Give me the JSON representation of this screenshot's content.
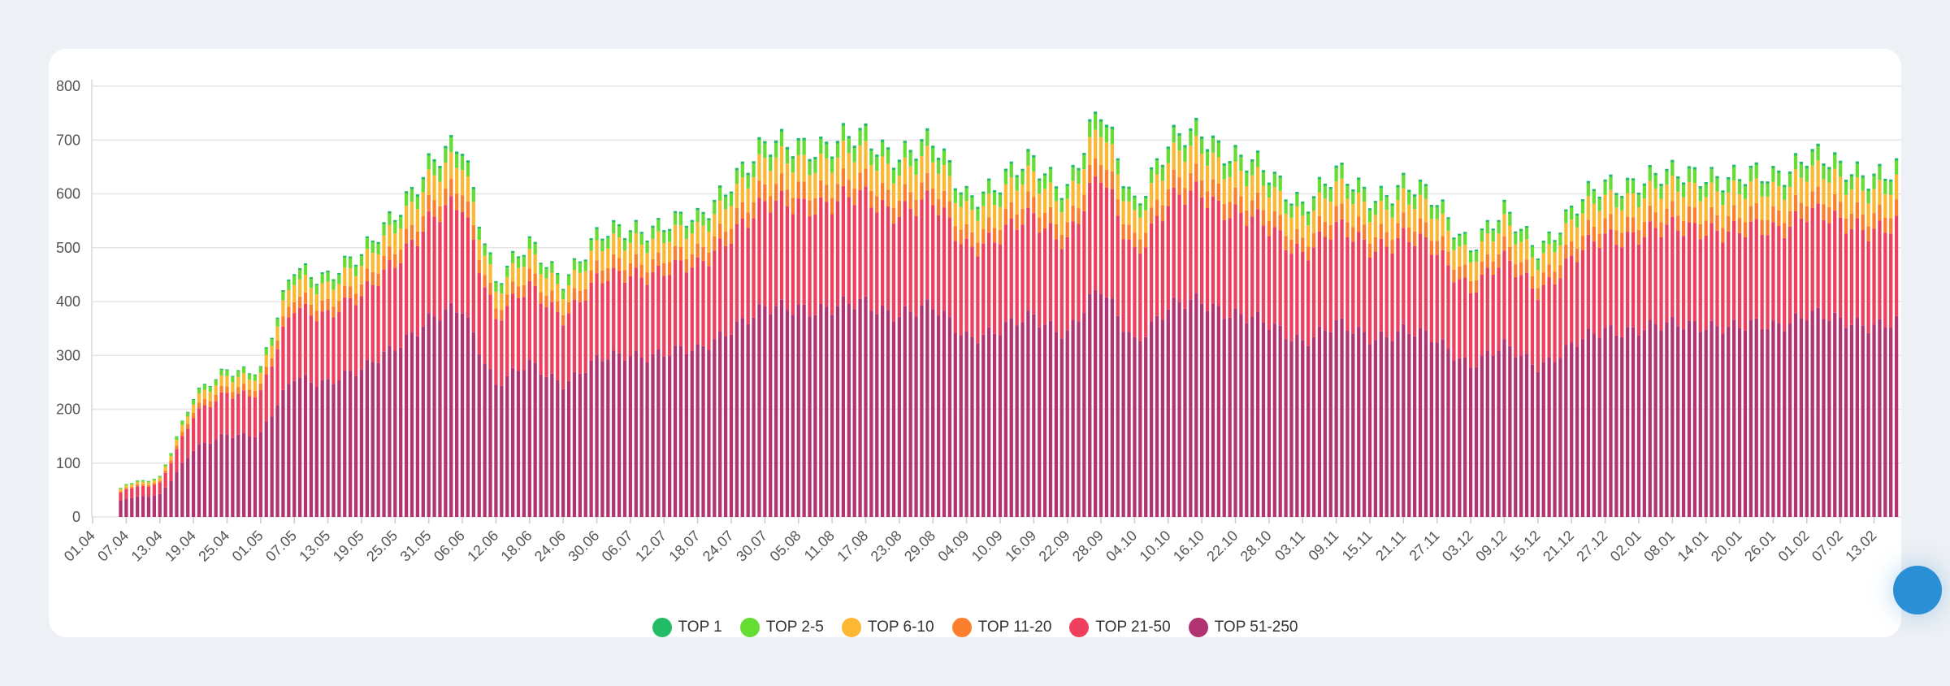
{
  "chart_data": {
    "type": "bar",
    "stacked": true,
    "title": "",
    "xlabel": "",
    "ylabel": "",
    "ylim": [
      0,
      800
    ],
    "yticks": [
      0,
      100,
      200,
      300,
      400,
      500,
      600,
      700,
      800
    ],
    "grid": true,
    "legend_position": "bottom-center",
    "x_tick_labels": [
      "01.04",
      "07.04",
      "13.04",
      "19.04",
      "25.04",
      "01.05",
      "07.05",
      "13.05",
      "19.05",
      "25.05",
      "31.05",
      "06.06",
      "12.06",
      "18.06",
      "24.06",
      "30.06",
      "06.07",
      "12.07",
      "18.07",
      "24.07",
      "30.07",
      "05.08",
      "11.08",
      "17.08",
      "23.08",
      "29.08",
      "04.09",
      "10.09",
      "16.09",
      "22.09",
      "28.09",
      "04.10",
      "10.10",
      "16.10",
      "22.10",
      "28.10",
      "03.11",
      "09.11",
      "15.11",
      "21.11",
      "27.11",
      "03.12",
      "09.12",
      "15.12",
      "21.12",
      "27.12",
      "02.01",
      "08.01",
      "14.01",
      "20.01",
      "26.01",
      "01.02",
      "07.02",
      "13.02"
    ],
    "tick_step_days": 6,
    "series_names": [
      "TOP 1",
      "TOP 2-5",
      "TOP 6-10",
      "TOP 11-20",
      "TOP 21-50",
      "TOP 51-250"
    ],
    "series_colors": [
      "#22bb66",
      "#66dd33",
      "#fdb833",
      "#fb7f2d",
      "#ee3f5e",
      "#b23372"
    ],
    "approx_totals_at_ticks": [
      0,
      62,
      75,
      220,
      278,
      272,
      465,
      452,
      480,
      575,
      645,
      695,
      440,
      502,
      448,
      515,
      540,
      545,
      548,
      635,
      680,
      700,
      690,
      705,
      680,
      688,
      605,
      615,
      665,
      615,
      750,
      590,
      685,
      722,
      672,
      632,
      590,
      632,
      600,
      618,
      582,
      510,
      560,
      505,
      565,
      618,
      630,
      630,
      645,
      625,
      635,
      680,
      640,
      645
    ],
    "approx_share_by_series": {
      "TOP 1": 0.007,
      "TOP 2-5": 0.038,
      "TOP 6-10": 0.07,
      "TOP 11-20": 0.045,
      "TOP 21-50": 0.28,
      "TOP 51-250": 0.56
    }
  },
  "legend": [
    {
      "label": "TOP 1",
      "color": "#22bb66"
    },
    {
      "label": "TOP 2-5",
      "color": "#66dd33"
    },
    {
      "label": "TOP 6-10",
      "color": "#fdb833"
    },
    {
      "label": "TOP 11-20",
      "color": "#fb7f2d"
    },
    {
      "label": "TOP 21-50",
      "color": "#ee3f5e"
    },
    {
      "label": "TOP 51-250",
      "color": "#b23372"
    }
  ]
}
